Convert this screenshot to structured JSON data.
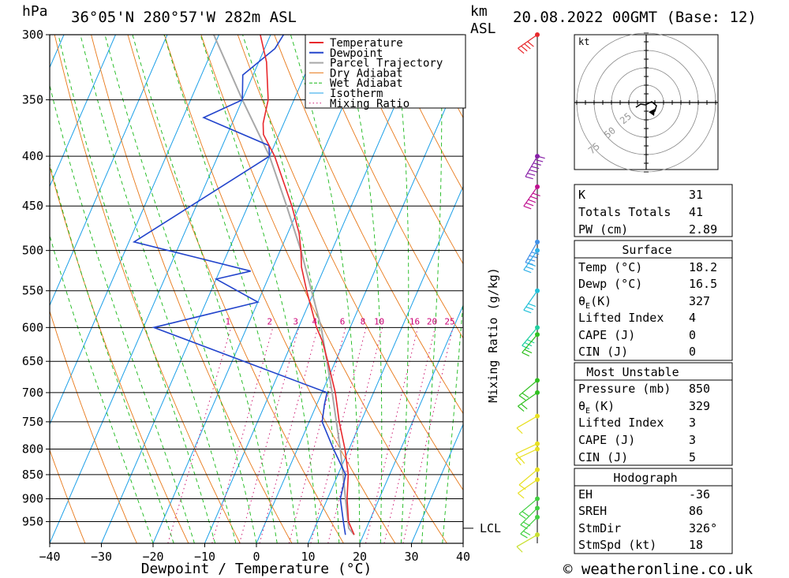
{
  "header": {
    "location": "36°05'N  280°57'W  282m  ASL",
    "datetime": "20.08.2022  00GMT  (Base: 12)",
    "hpa_label": "hPa",
    "km_label": "km",
    "asl_label": "ASL"
  },
  "chart_data": {
    "type": "skew-t",
    "xlabel": "Dewpoint / Temperature (°C)",
    "ylabel_right": "Mixing Ratio (g/kg)",
    "pressure_levels": [
      300,
      350,
      400,
      450,
      500,
      550,
      600,
      650,
      700,
      750,
      800,
      850,
      900,
      950
    ],
    "pressure_labels": [
      "300",
      "350",
      "400",
      "450",
      "500",
      "550",
      "600",
      "650",
      "700",
      "750",
      "800",
      "850",
      "900",
      "950"
    ],
    "x_ticks": [
      -40,
      -30,
      -20,
      -10,
      0,
      10,
      20,
      30,
      40
    ],
    "x_tick_labels": [
      "−40",
      "−30",
      "−20",
      "−10",
      "0",
      "10",
      "20",
      "30",
      "40"
    ],
    "mixing_ratio_labels": [
      "1",
      "2",
      "3",
      "4",
      "6",
      "8",
      "10",
      "16",
      "20",
      "25"
    ],
    "lcl_label": "LCL",
    "lcl_pressure": 965,
    "temperature": [
      {
        "p": 980,
        "t": 18.2
      },
      {
        "p": 950,
        "t": 16.0
      },
      {
        "p": 900,
        "t": 13.8
      },
      {
        "p": 850,
        "t": 12.0
      },
      {
        "p": 800,
        "t": 9.2
      },
      {
        "p": 750,
        "t": 5.8
      },
      {
        "p": 700,
        "t": 2.6
      },
      {
        "p": 650,
        "t": -1.5
      },
      {
        "p": 620,
        "t": -4.2
      },
      {
        "p": 600,
        "t": -6.5
      },
      {
        "p": 550,
        "t": -11.5
      },
      {
        "p": 520,
        "t": -14.5
      },
      {
        "p": 500,
        "t": -16.0
      },
      {
        "p": 480,
        "t": -17.8
      },
      {
        "p": 450,
        "t": -21.5
      },
      {
        "p": 400,
        "t": -29.0
      },
      {
        "p": 380,
        "t": -33.0
      },
      {
        "p": 370,
        "t": -34.0
      },
      {
        "p": 350,
        "t": -35.0
      },
      {
        "p": 320,
        "t": -38.5
      },
      {
        "p": 300,
        "t": -42.0
      }
    ],
    "dewpoint": [
      {
        "p": 980,
        "t": 16.5
      },
      {
        "p": 950,
        "t": 15.0
      },
      {
        "p": 900,
        "t": 12.5
      },
      {
        "p": 850,
        "t": 11.5
      },
      {
        "p": 800,
        "t": 7.0
      },
      {
        "p": 750,
        "t": 2.5
      },
      {
        "p": 720,
        "t": 1.5
      },
      {
        "p": 700,
        "t": 1.0
      },
      {
        "p": 600,
        "t": -38.0
      },
      {
        "p": 565,
        "t": -20.0
      },
      {
        "p": 535,
        "t": -30.0
      },
      {
        "p": 525,
        "t": -24.0
      },
      {
        "p": 490,
        "t": -49.0
      },
      {
        "p": 400,
        "t": -30.0
      },
      {
        "p": 390,
        "t": -31.0
      },
      {
        "p": 365,
        "t": -46.0
      },
      {
        "p": 350,
        "t": -40.0
      },
      {
        "p": 330,
        "t": -42.0
      },
      {
        "p": 310,
        "t": -38.0
      },
      {
        "p": 300,
        "t": -37.5
      }
    ],
    "parcel": [
      {
        "p": 980,
        "t": 18.2
      },
      {
        "p": 965,
        "t": 16.6
      },
      {
        "p": 900,
        "t": 13.5
      },
      {
        "p": 850,
        "t": 11.0
      },
      {
        "p": 800,
        "t": 8.3
      },
      {
        "p": 700,
        "t": 2.0
      },
      {
        "p": 600,
        "t": -5.6
      },
      {
        "p": 500,
        "t": -16.0
      },
      {
        "p": 450,
        "t": -22.5
      },
      {
        "p": 400,
        "t": -30.0
      },
      {
        "p": 350,
        "t": -40.0
      },
      {
        "p": 300,
        "t": -51.0
      }
    ],
    "legend": [
      "Temperature",
      "Dewpoint",
      "Parcel Trajectory",
      "Dry Adiabat",
      "Wet Adiabat",
      "Isotherm",
      "Mixing Ratio"
    ],
    "legend_placement": "top-right",
    "colors": {
      "temperature": "#e8282c",
      "dewpoint": "#2244cc",
      "parcel": "#a8a8a8",
      "dry": "#e87818",
      "wet": "#18b818",
      "isotherm": "#1ca0e8",
      "mixing": "#cc1870"
    }
  },
  "hodograph": {
    "unit": "kt",
    "ring_labels": [
      "25",
      "50",
      "75"
    ]
  },
  "indices": {
    "k_label": "K",
    "k": "31",
    "tt_label": "Totals Totals",
    "tt": "41",
    "pw_label": "PW (cm)",
    "pw": "2.89"
  },
  "surface": {
    "title": "Surface",
    "temp_label": "Temp (°C)",
    "temp": "18.2",
    "dewp_label": "Dewp (°C)",
    "dewp": "16.5",
    "theta_sym": "θ",
    "theta_sub": "E",
    "theta_unit": "(K)",
    "theta": "327",
    "li_label": "Lifted Index",
    "li": "4",
    "cape_label": "CAPE (J)",
    "cape": "0",
    "cin_label": "CIN (J)",
    "cin": "0"
  },
  "most_unstable": {
    "title": "Most Unstable",
    "pres_label": "Pressure (mb)",
    "pres": "850",
    "theta_sym": "θ",
    "theta_sub": "E",
    "theta_unit": "(K)",
    "theta": "329",
    "li_label": "Lifted Index",
    "li": "3",
    "cape_label": "CAPE (J)",
    "cape": "3",
    "cin_label": "CIN (J)",
    "cin": "5"
  },
  "hodo_table": {
    "title": "Hodograph",
    "eh_label": "EH",
    "eh": "-36",
    "sreh_label": "SREH",
    "sreh": "86",
    "stmdir_label": "StmDir",
    "stmdir": "326°",
    "stmspd_label": "StmSpd (kt)",
    "stmspd": "18"
  },
  "footer": {
    "copyright": "© weatheronline.co.uk"
  }
}
